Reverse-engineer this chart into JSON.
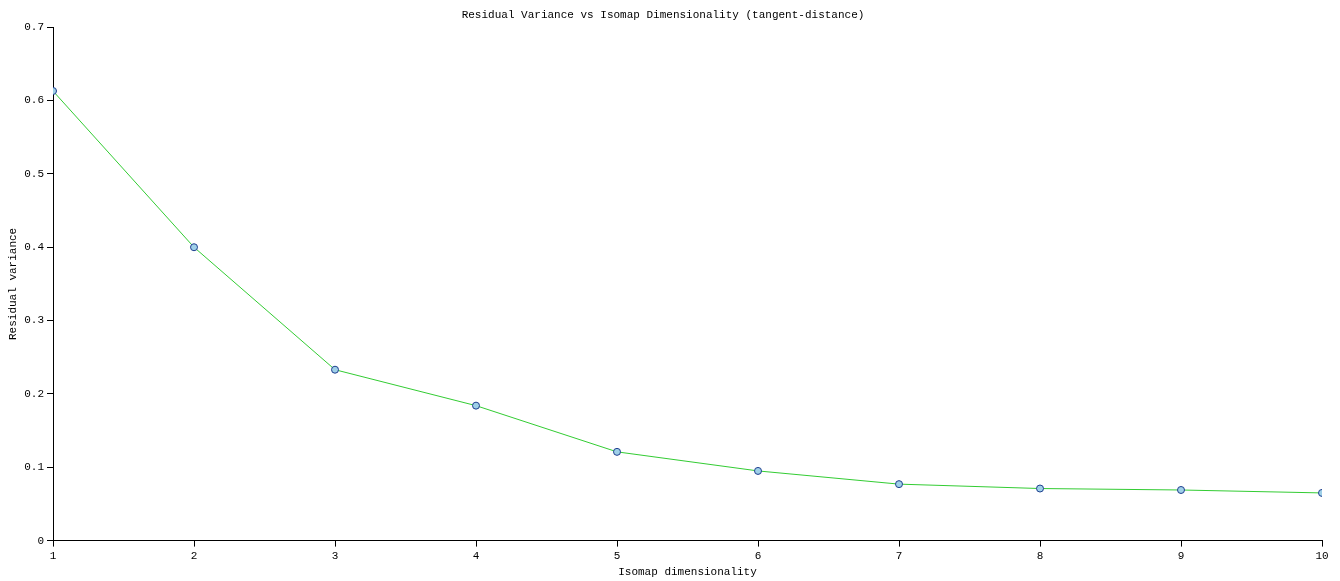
{
  "chart_data": {
    "type": "line",
    "title": "Residual Variance vs Isomap Dimensionality (tangent-distance)",
    "xlabel": "Isomap dimensionality",
    "ylabel": "Residual variance",
    "x": [
      1,
      2,
      3,
      4,
      5,
      6,
      7,
      8,
      9,
      10
    ],
    "series": [
      {
        "color": "#33cc33",
        "values": [
          0.613,
          0.4,
          0.233,
          0.184,
          0.121,
          0.095,
          0.077,
          0.071,
          0.069,
          0.065
        ]
      }
    ],
    "xlim": [
      1,
      10
    ],
    "xticks": [
      1,
      2,
      3,
      4,
      5,
      6,
      7,
      8,
      9,
      10
    ],
    "ylim": [
      0,
      0.7
    ],
    "yticks": [
      0,
      0.1,
      0.2,
      0.3,
      0.4,
      0.5,
      0.6,
      0.7
    ],
    "grid": false,
    "legend": false,
    "marker": "circle",
    "line_style": "solid"
  }
}
